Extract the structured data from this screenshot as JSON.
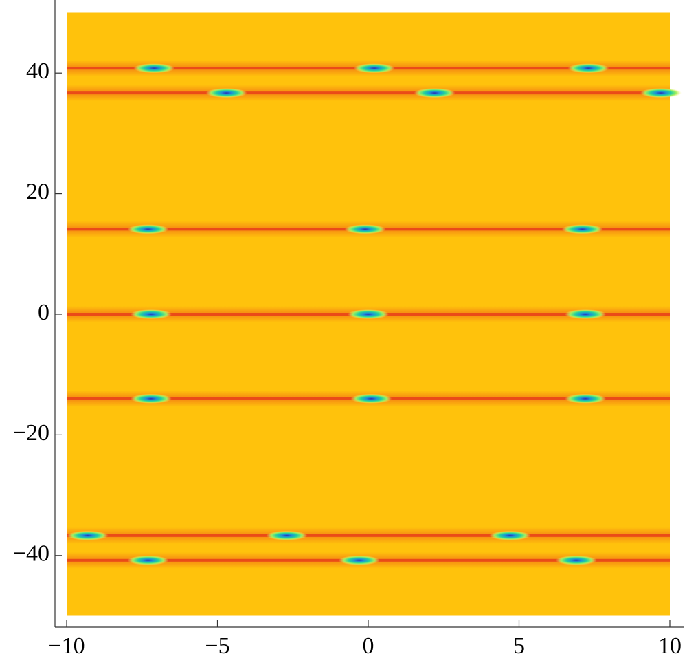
{
  "chart_data": {
    "type": "density",
    "xlim": [
      -10,
      10
    ],
    "ylim": [
      -50,
      50
    ],
    "xticks": [
      {
        "value": -10,
        "label": "−10"
      },
      {
        "value": -5,
        "label": "−5"
      },
      0,
      5,
      10
    ],
    "yticks": [
      {
        "value": -40,
        "label": "−40"
      },
      {
        "value": -20,
        "label": "−20"
      },
      0,
      20,
      40
    ],
    "background_color": "#ffc20c",
    "band_color": "#e8401a",
    "bands": [
      {
        "y": 40.8,
        "spots": [
          -7.1,
          0.2,
          7.3
        ]
      },
      {
        "y": 36.7,
        "spots": [
          -4.7,
          2.2,
          9.7
        ]
      },
      {
        "y": 14.1,
        "spots": [
          -7.3,
          -0.1,
          7.1
        ]
      },
      {
        "y": 0,
        "spots": [
          -7.2,
          0,
          7.2
        ]
      },
      {
        "y": -14,
        "spots": [
          -7.2,
          0.1,
          7.2
        ]
      },
      {
        "y": -36.7,
        "spots": [
          -9.3,
          -2.7,
          4.7
        ]
      },
      {
        "y": -40.8,
        "spots": [
          -7.3,
          -0.3,
          6.9
        ]
      }
    ]
  }
}
